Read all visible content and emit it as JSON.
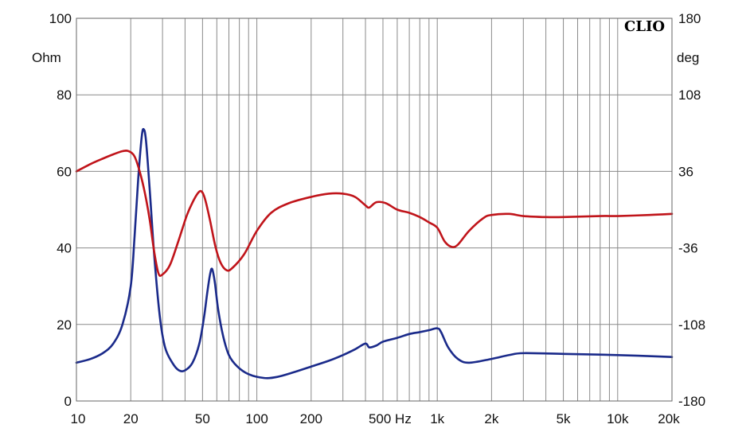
{
  "chart_data": {
    "type": "line",
    "brand": "CLIO",
    "x_axis": {
      "scale": "log",
      "range": [
        10,
        20000
      ],
      "tick_labels": [
        {
          "value": 10,
          "label": "10"
        },
        {
          "value": 20,
          "label": "20"
        },
        {
          "value": 50,
          "label": "50"
        },
        {
          "value": 100,
          "label": "100"
        },
        {
          "value": 200,
          "label": "200"
        },
        {
          "value": 500,
          "label": "500 Hz"
        },
        {
          "value": 1000,
          "label": "1k"
        },
        {
          "value": 2000,
          "label": "2k"
        },
        {
          "value": 5000,
          "label": "5k"
        },
        {
          "value": 10000,
          "label": "10k"
        },
        {
          "value": 20000,
          "label": "20k"
        }
      ]
    },
    "y_left": {
      "unit": "Ohm",
      "range": [
        0,
        100
      ],
      "ticks": [
        "0",
        "20",
        "40",
        "60",
        "80",
        "100"
      ]
    },
    "y_right": {
      "unit": "deg",
      "range": [
        -180,
        180
      ],
      "ticks": [
        "-180",
        "-108",
        "-36",
        "36",
        "108",
        "180"
      ]
    },
    "grid": true,
    "series": [
      {
        "axis": "left",
        "color": "#1a2a8a",
        "points": [
          [
            10,
            10
          ],
          [
            12,
            11
          ],
          [
            14,
            12.5
          ],
          [
            16,
            15
          ],
          [
            18,
            20
          ],
          [
            20,
            30
          ],
          [
            21,
            43
          ],
          [
            22,
            58
          ],
          [
            23,
            69
          ],
          [
            23.6,
            71
          ],
          [
            24.3,
            68
          ],
          [
            25.5,
            55
          ],
          [
            27,
            38
          ],
          [
            29,
            22
          ],
          [
            31,
            14
          ],
          [
            34,
            10
          ],
          [
            37,
            8
          ],
          [
            40,
            8
          ],
          [
            44,
            10
          ],
          [
            48,
            15
          ],
          [
            51,
            22
          ],
          [
            53,
            28
          ],
          [
            55,
            33
          ],
          [
            56.5,
            34.5
          ],
          [
            58.5,
            31
          ],
          [
            61,
            24
          ],
          [
            65,
            17
          ],
          [
            70,
            12
          ],
          [
            78,
            9
          ],
          [
            90,
            7
          ],
          [
            110,
            6
          ],
          [
            130,
            6.3
          ],
          [
            160,
            7.5
          ],
          [
            200,
            9
          ],
          [
            250,
            10.5
          ],
          [
            300,
            12
          ],
          [
            350,
            13.5
          ],
          [
            400,
            15
          ],
          [
            420,
            14
          ],
          [
            460,
            14.5
          ],
          [
            500,
            15.5
          ],
          [
            600,
            16.5
          ],
          [
            700,
            17.5
          ],
          [
            800,
            18
          ],
          [
            900,
            18.5
          ],
          [
            1000,
            19
          ],
          [
            1050,
            18
          ],
          [
            1150,
            14
          ],
          [
            1300,
            11
          ],
          [
            1500,
            10
          ],
          [
            2000,
            11
          ],
          [
            2500,
            12
          ],
          [
            3000,
            12.5
          ],
          [
            5000,
            12.3
          ],
          [
            10000,
            12
          ],
          [
            20000,
            11.5
          ]
        ]
      },
      {
        "axis": "right",
        "color": "#c0141a",
        "points": [
          [
            10,
            36
          ],
          [
            12,
            43
          ],
          [
            14,
            48
          ],
          [
            16,
            52
          ],
          [
            18,
            55
          ],
          [
            19.5,
            55
          ],
          [
            21,
            50
          ],
          [
            22.5,
            35
          ],
          [
            24,
            15
          ],
          [
            25.5,
            -10
          ],
          [
            27,
            -40
          ],
          [
            28.5,
            -60
          ],
          [
            30,
            -61
          ],
          [
            33,
            -52
          ],
          [
            37,
            -28
          ],
          [
            41,
            -5
          ],
          [
            45,
            10
          ],
          [
            48,
            17
          ],
          [
            50,
            16
          ],
          [
            52,
            8
          ],
          [
            55,
            -10
          ],
          [
            59,
            -35
          ],
          [
            63,
            -50
          ],
          [
            68,
            -57
          ],
          [
            73,
            -55
          ],
          [
            85,
            -42
          ],
          [
            100,
            -20
          ],
          [
            120,
            -3
          ],
          [
            150,
            6
          ],
          [
            200,
            12
          ],
          [
            250,
            15
          ],
          [
            300,
            15
          ],
          [
            350,
            12
          ],
          [
            400,
            4
          ],
          [
            420,
            2
          ],
          [
            460,
            7
          ],
          [
            520,
            6
          ],
          [
            600,
            0
          ],
          [
            700,
            -3
          ],
          [
            800,
            -7
          ],
          [
            900,
            -12
          ],
          [
            1000,
            -17
          ],
          [
            1100,
            -30
          ],
          [
            1200,
            -35
          ],
          [
            1300,
            -33
          ],
          [
            1500,
            -20
          ],
          [
            1800,
            -8
          ],
          [
            2000,
            -5
          ],
          [
            2500,
            -4
          ],
          [
            3000,
            -6
          ],
          [
            4000,
            -7
          ],
          [
            5000,
            -7
          ],
          [
            8000,
            -6
          ],
          [
            10000,
            -6
          ],
          [
            15000,
            -5
          ],
          [
            20000,
            -4
          ]
        ]
      }
    ]
  }
}
